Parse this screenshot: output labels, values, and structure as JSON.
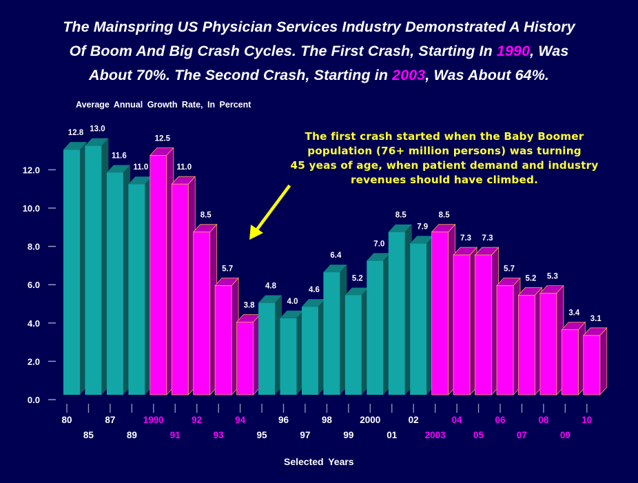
{
  "title": {
    "line1": "The Mainspring US Physician Services Industry Demonstrated A History",
    "line2_pre": "Of Boom And Big Crash Cycles. The First Crash, Starting In ",
    "line2_hl": "1990",
    "line2_post": ", Was",
    "line3_pre": "About 70%. The Second Crash, Starting in ",
    "line3_hl": "2003",
    "line3_post": ", Was About 64%."
  },
  "annotation": {
    "line1": "The first crash started when the Baby Boomer",
    "line2": "population (76+ million persons) was turning",
    "line3": "45 yeas of age, when patient demand and industry",
    "line4": "revenues should have climbed."
  },
  "colors": {
    "background": "#000052",
    "boom_front": "#13a6a6",
    "boom_top": "#0f7f7f",
    "boom_side": "#0b5858",
    "crash_front": "#ff00ff",
    "crash_top": "#b800b8",
    "crash_side": "#8a008a",
    "crash_outline": "#e8a84a",
    "annotation": "#ffff33"
  },
  "chart_data": {
    "type": "bar",
    "title": "Average Annual Growth Rate, In Percent",
    "xlabel": "Selected Years",
    "ylabel": "",
    "ylim": [
      0,
      12
    ],
    "yticks": [
      "0.0",
      "2.0",
      "4.0",
      "6.0",
      "8.0",
      "10.0",
      "12.0"
    ],
    "grid": false,
    "categories": [
      "80",
      "85",
      "87",
      "89",
      "1990",
      "91",
      "92",
      "93",
      "94",
      "95",
      "96",
      "97",
      "98",
      "99",
      "2000",
      "01",
      "02",
      "2003",
      "04",
      "05",
      "06",
      "07",
      "08",
      "09",
      "10"
    ],
    "values": [
      12.8,
      13.0,
      11.6,
      11.0,
      12.5,
      11.0,
      8.5,
      5.7,
      3.8,
      4.8,
      4.0,
      4.6,
      6.4,
      5.2,
      7.0,
      8.5,
      7.9,
      8.5,
      7.3,
      7.3,
      5.7,
      5.2,
      5.3,
      3.4,
      3.1
    ],
    "value_labels": [
      "12.8",
      "13.0",
      "11.6",
      "11.0",
      "12.5",
      "11.0",
      "8.5",
      "5.7",
      "3.8",
      "4.8",
      "4.0",
      "4.6",
      "6.4",
      "5.2",
      "7.0",
      "8.5",
      "7.9",
      "8.5",
      "7.3",
      "7.3",
      "5.7",
      "5.2",
      "5.3",
      "3.4",
      "3.1"
    ],
    "phase": [
      "boom",
      "boom",
      "boom",
      "boom",
      "crash",
      "crash",
      "crash",
      "crash",
      "crash",
      "boom",
      "boom",
      "boom",
      "boom",
      "boom",
      "boom",
      "boom",
      "boom",
      "crash",
      "crash",
      "crash",
      "crash",
      "crash",
      "crash",
      "crash",
      "crash"
    ],
    "annotation_arrow": "pointing down-left toward the 1990s crash"
  }
}
